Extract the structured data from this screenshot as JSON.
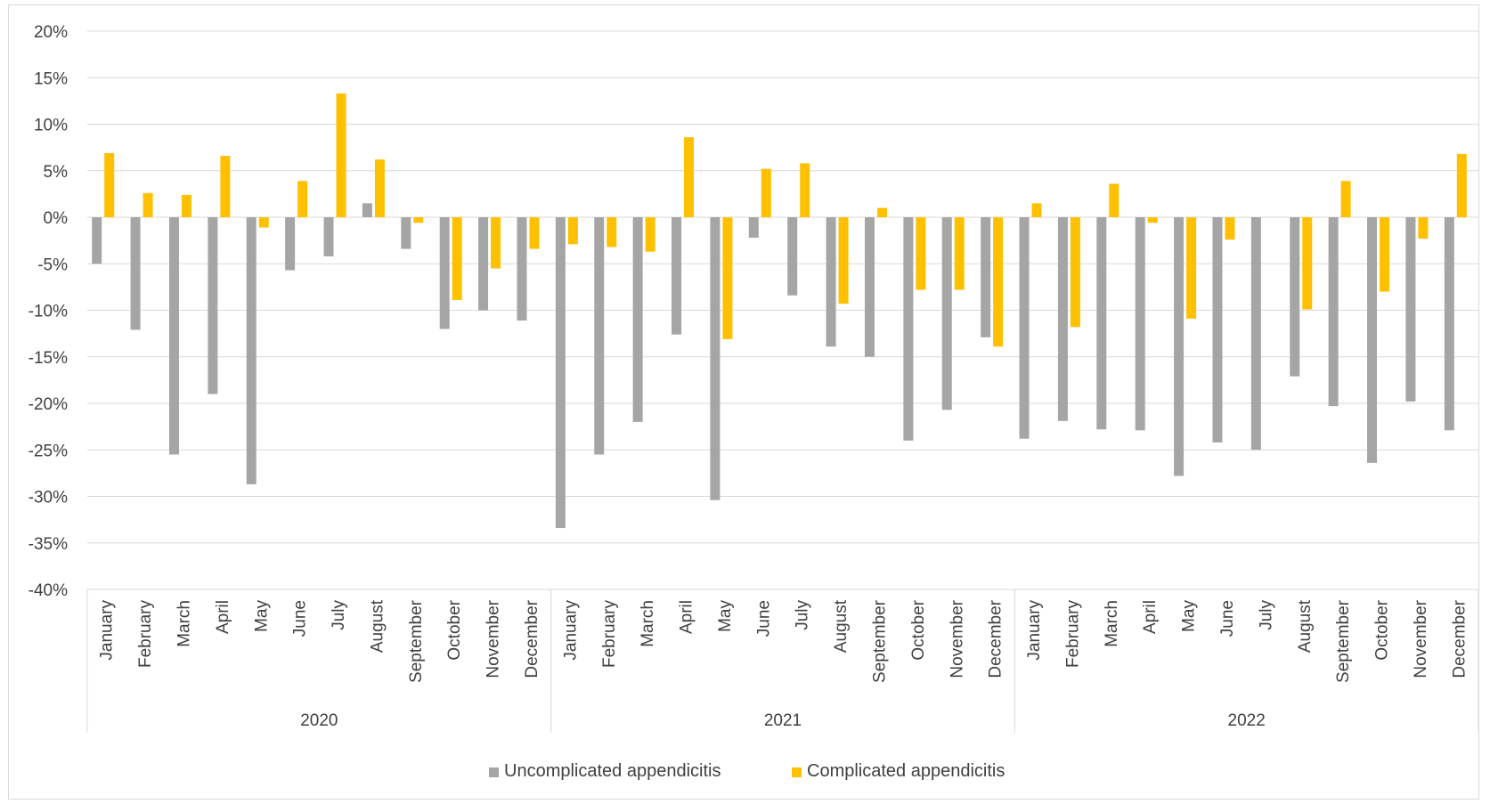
{
  "chart_data": {
    "type": "bar",
    "ylim": [
      -40,
      20
    ],
    "y_ticks": [
      "20%",
      "15%",
      "10%",
      "5%",
      "0%",
      "-5%",
      "-10%",
      "-15%",
      "-20%",
      "-25%",
      "-30%",
      "-35%",
      "-40%"
    ],
    "y_tick_values": [
      20,
      15,
      10,
      5,
      0,
      -5,
      -10,
      -15,
      -20,
      -25,
      -30,
      -35,
      -40
    ],
    "grid": true,
    "legend_position": "bottom",
    "years": [
      "2020",
      "2021",
      "2022"
    ],
    "categories": [
      "January",
      "February",
      "March",
      "April",
      "May",
      "June",
      "July",
      "August",
      "September",
      "October",
      "November",
      "December",
      "January",
      "February",
      "March",
      "April",
      "May",
      "June",
      "July",
      "August",
      "September",
      "October",
      "November",
      "December",
      "January",
      "February",
      "March",
      "April",
      "May",
      "June",
      "July",
      "August",
      "September",
      "October",
      "November",
      "December"
    ],
    "series": [
      {
        "name": "Uncomplicated appendicitis",
        "color": "#a5a5a5",
        "values": [
          -5.0,
          -12.1,
          -25.5,
          -19.0,
          -28.7,
          -5.7,
          -4.2,
          1.5,
          -3.4,
          -12.0,
          -10.0,
          -11.1,
          -33.4,
          -25.5,
          -22.0,
          -12.6,
          -30.4,
          -2.2,
          -8.4,
          -13.9,
          -15.0,
          -24.0,
          -20.7,
          -12.9,
          -23.8,
          -21.9,
          -22.8,
          -22.9,
          -27.8,
          -24.2,
          -25.0,
          -17.1,
          -20.3,
          -26.4,
          -19.8,
          -22.9
        ]
      },
      {
        "name": "Complicated appendicitis",
        "color": "#ffc000",
        "values": [
          6.9,
          2.6,
          2.4,
          6.6,
          -1.1,
          3.9,
          13.3,
          6.2,
          -0.6,
          -8.9,
          -5.5,
          -3.4,
          -2.9,
          -3.2,
          -3.7,
          8.6,
          -13.1,
          5.2,
          5.8,
          -9.3,
          1.0,
          -7.8,
          -7.8,
          -13.9,
          1.5,
          -11.8,
          3.6,
          -0.6,
          -10.9,
          -2.4,
          0.0,
          -9.9,
          3.9,
          -8.0,
          -2.3,
          6.8
        ]
      }
    ]
  }
}
